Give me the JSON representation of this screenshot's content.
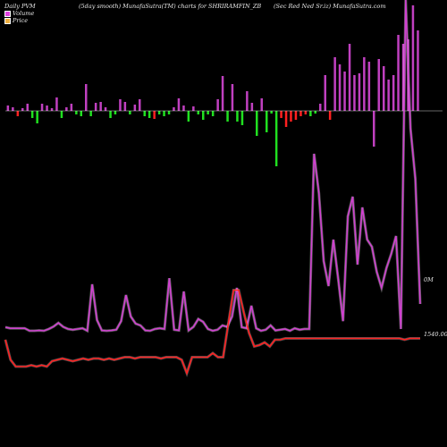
{
  "header": {
    "left": "Daily PVM",
    "center_left": "(5day smooth) MunafaSutra(TM) charts for SHRIRAMFIN_ZB",
    "right": "(Sec Red Ned Sr.iz) MunafaSutra.com"
  },
  "legend": [
    {
      "label": "Volume",
      "color": "#e040e0"
    },
    {
      "label": "Price",
      "color": "#f0b040"
    }
  ],
  "labels": {
    "volume_axis": "0M",
    "price_axis": "1540.00"
  },
  "colors": {
    "background": "#000000",
    "volume_up": "#c040c0",
    "volume_line": "#d040d0",
    "volume_down_red": "#ff2020",
    "volume_down_green": "#20e020",
    "price_line": "#ff2020",
    "baseline": "#ffffff"
  },
  "chart_data": {
    "type": "bar",
    "title": "Daily PVM",
    "series": [
      {
        "name": "Volume",
        "kind": "bars",
        "values": [
          6,
          4,
          -6,
          3,
          8,
          -8,
          -14,
          8,
          6,
          3,
          15,
          -8,
          4,
          8,
          -4,
          -6,
          30,
          -6,
          9,
          10,
          4,
          -8,
          -4,
          13,
          10,
          -4,
          7,
          13,
          -6,
          -8,
          -9,
          -4,
          -6,
          -4,
          4,
          14,
          6,
          -12,
          5,
          -4,
          -10,
          -4,
          -6,
          13,
          39,
          -12,
          30,
          -12,
          -16,
          22,
          9,
          -28,
          14,
          -24,
          -3,
          -62,
          -8,
          -18,
          -12,
          -10,
          -6,
          -4,
          -6,
          -3,
          8,
          40,
          -10,
          60,
          52,
          44,
          75,
          40,
          42,
          60,
          55,
          -40,
          58,
          50,
          35,
          40,
          85,
          75,
          80,
          118,
          90
        ],
        "colors": [
          "up",
          "up",
          "red",
          "up",
          "up",
          "green",
          "green",
          "up",
          "up",
          "up",
          "up",
          "green",
          "up",
          "up",
          "green",
          "green",
          "up",
          "green",
          "up",
          "up",
          "up",
          "green",
          "green",
          "up",
          "up",
          "green",
          "up",
          "up",
          "green",
          "green",
          "red",
          "green",
          "green",
          "green",
          "up",
          "up",
          "up",
          "green",
          "up",
          "green",
          "green",
          "green",
          "green",
          "up",
          "up",
          "green",
          "up",
          "green",
          "green",
          "up",
          "up",
          "green",
          "up",
          "green",
          "green",
          "green",
          "red",
          "red",
          "red",
          "red",
          "red",
          "red",
          "green",
          "green",
          "up",
          "up",
          "red",
          "up",
          "up",
          "up",
          "up",
          "up",
          "up",
          "up",
          "up",
          "up",
          "up",
          "up",
          "up",
          "up",
          "up",
          "up",
          "up",
          "up",
          "up"
        ]
      },
      {
        "name": "Volume line",
        "kind": "line",
        "values": [
          0.85,
          0.82,
          0.82,
          0.82,
          0.82,
          0.75,
          0.75,
          0.76,
          0.75,
          0.8,
          0.87,
          0.97,
          0.86,
          0.8,
          0.78,
          0.8,
          0.82,
          0.75,
          2.05,
          1.05,
          0.76,
          0.75,
          0.76,
          0.78,
          1.02,
          1.75,
          1.15,
          0.95,
          0.9,
          0.76,
          0.75,
          0.8,
          0.82,
          0.8,
          2.22,
          0.78,
          0.76,
          1.85,
          0.76,
          0.86,
          1.08,
          1.0,
          0.8,
          0.75,
          0.78,
          0.9,
          0.86,
          1.15,
          1.95,
          0.85,
          0.82,
          1.45,
          0.82,
          0.75,
          0.78,
          0.9,
          0.76,
          0.78,
          0.8,
          0.75,
          0.82,
          0.78,
          0.8,
          0.8,
          5.7,
          4.6,
          2.7,
          2.0,
          3.3,
          2.2,
          1.02,
          3.95,
          4.5,
          2.6,
          4.2,
          3.3,
          3.1,
          2.4,
          1.95,
          2.5,
          2.9,
          3.4,
          0.8,
          10.0,
          6.4,
          5.0,
          1.5
        ]
      },
      {
        "name": "Price",
        "kind": "line",
        "values": [
          1540,
          1525,
          1520,
          1520,
          1520,
          1521,
          1520,
          1521,
          1520,
          1524,
          1525,
          1526,
          1525,
          1524,
          1525,
          1526,
          1525,
          1526,
          1526,
          1525,
          1526,
          1525,
          1526,
          1527,
          1527,
          1526,
          1527,
          1527,
          1527,
          1527,
          1526,
          1527,
          1527,
          1527,
          1525,
          1515,
          1527,
          1527,
          1527,
          1527,
          1530,
          1527,
          1527,
          1552,
          1577,
          1577,
          1560,
          1545,
          1535,
          1536,
          1538,
          1535,
          1540,
          1540,
          1541,
          1541,
          1541,
          1541,
          1541,
          1541,
          1541,
          1541,
          1541,
          1541,
          1541,
          1541,
          1541,
          1541,
          1541,
          1541,
          1541,
          1541,
          1541,
          1541,
          1541,
          1541,
          1541,
          1540,
          1541,
          1541,
          1541
        ]
      }
    ],
    "ylim_volume": [
      0,
      10
    ],
    "ylim_price": [
      1510,
      1590
    ],
    "legend_position": "top-left",
    "grid": false
  }
}
